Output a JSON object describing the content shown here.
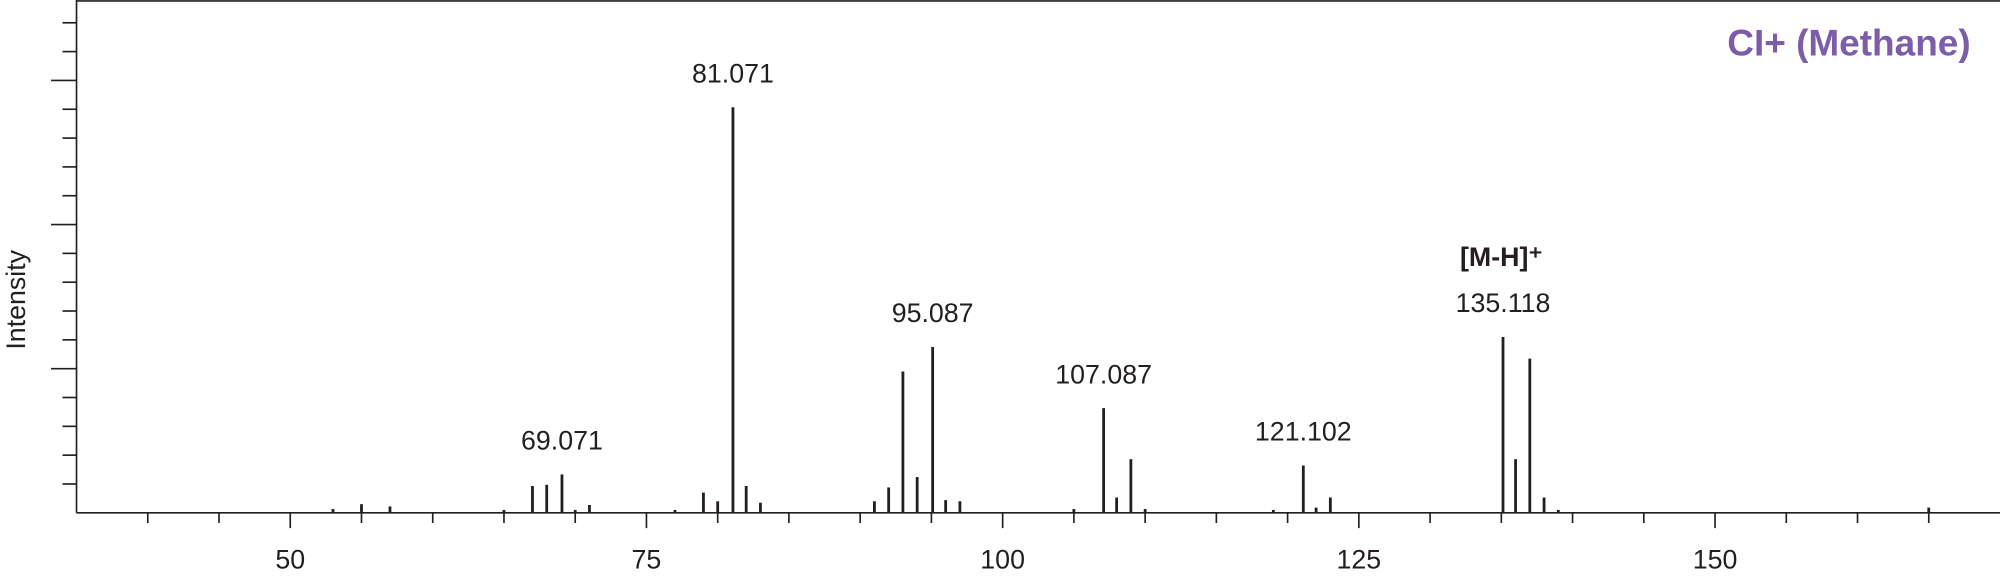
{
  "chart_data": {
    "type": "stem",
    "title": "CI+ (Methane)",
    "title_color": "#7b5ea7",
    "y_label": "Intensity",
    "ion_label": "[M-H]⁺",
    "color": "#231f20",
    "xlim": [
      35,
      170
    ],
    "xticks": [
      50,
      75,
      100,
      125,
      150
    ],
    "xminorticks": [
      40,
      45,
      55,
      60,
      65,
      70,
      80,
      85,
      90,
      95,
      105,
      110,
      115,
      120,
      130,
      135,
      140,
      145,
      155,
      160,
      165
    ],
    "ylim": [
      0,
      17.7
    ],
    "yticks": [
      5,
      10,
      15
    ],
    "yminorticks": [
      1,
      2,
      3,
      4,
      6,
      7,
      8,
      9,
      11,
      12,
      13,
      14,
      16,
      17
    ],
    "grid": false,
    "x": [
      53,
      55,
      57,
      65,
      67,
      68,
      69.071,
      70,
      71,
      77,
      79,
      80,
      81.071,
      82,
      83,
      91,
      92,
      93,
      94,
      95.087,
      96,
      97,
      105,
      107.087,
      108,
      109,
      110,
      119,
      121.102,
      122,
      123,
      135.118,
      136,
      137,
      138,
      139,
      165
    ],
    "values": [
      0.13,
      0.3,
      0.22,
      0.1,
      0.93,
      0.97,
      1.33,
      0.1,
      0.27,
      0.1,
      0.7,
      0.4,
      14.07,
      0.93,
      0.35,
      0.4,
      0.88,
      4.9,
      1.24,
      5.75,
      0.44,
      0.4,
      0.13,
      3.63,
      0.53,
      1.86,
      0.13,
      0.1,
      1.64,
      0.18,
      0.53,
      6.1,
      1.86,
      5.35,
      0.53,
      0.1,
      0.18
    ],
    "x_labels": [
      null,
      null,
      null,
      null,
      null,
      null,
      "69.071",
      null,
      null,
      null,
      null,
      null,
      "81.071",
      null,
      null,
      null,
      null,
      null,
      null,
      "95.087",
      null,
      null,
      null,
      "107.087",
      null,
      null,
      null,
      null,
      "121.102",
      null,
      null,
      "135.118",
      null,
      null,
      null,
      null,
      null
    ]
  }
}
